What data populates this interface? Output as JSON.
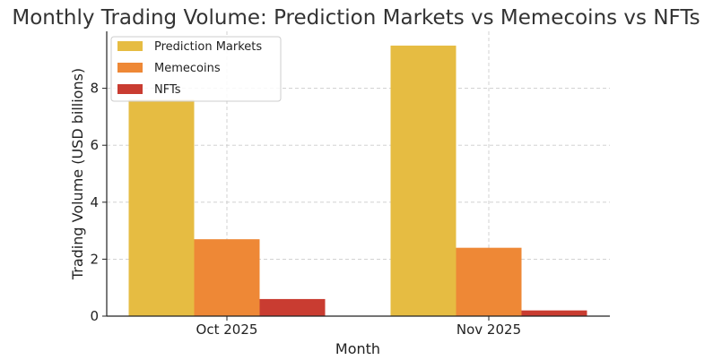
{
  "chart_data": {
    "type": "bar",
    "title": "Monthly Trading Volume: Prediction Markets vs Memecoins vs NFTs",
    "xlabel": "Month",
    "ylabel": "Trading Volume (USD billions)",
    "categories": [
      "Oct 2025",
      "Nov 2025"
    ],
    "series": [
      {
        "name": "Prediction Markets",
        "values": [
          7.6,
          9.5
        ],
        "color": "#E6BC42"
      },
      {
        "name": "Memecoins",
        "values": [
          2.7,
          2.4
        ],
        "color": "#EE8836"
      },
      {
        "name": "NFTs",
        "values": [
          0.6,
          0.2
        ],
        "color": "#C93C31"
      }
    ],
    "ylim": [
      0,
      10.0
    ],
    "yticks": [
      0,
      2,
      4,
      6,
      8
    ],
    "grid": true,
    "legend_position": "top-left"
  }
}
